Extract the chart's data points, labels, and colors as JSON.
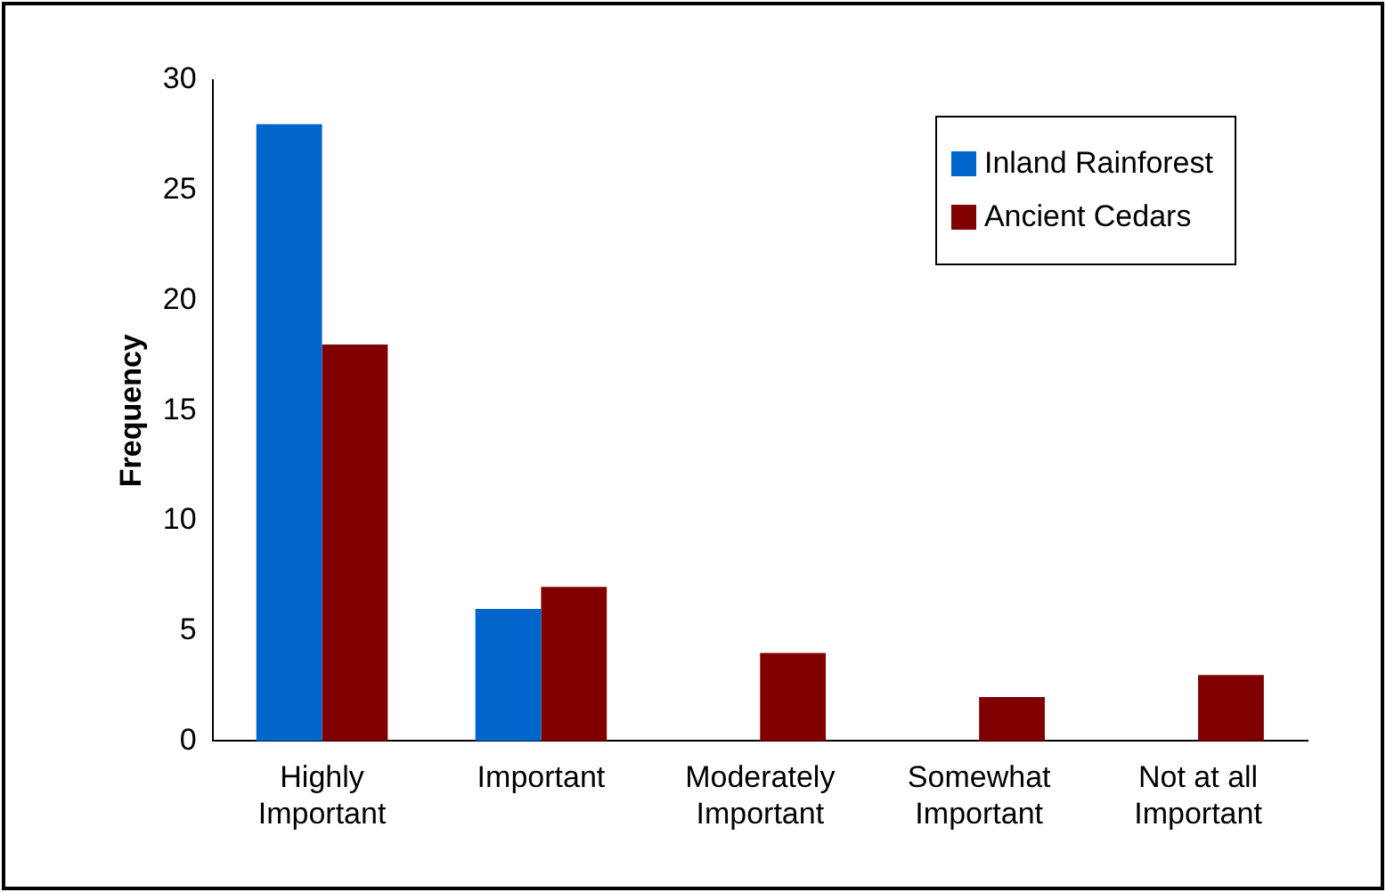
{
  "chart_data": {
    "type": "bar",
    "ylabel": "Frequency",
    "categories": [
      "Highly Important",
      "Important",
      "Moderately Important",
      "Somewhat Important",
      "Not at all Important"
    ],
    "series": [
      {
        "name": "Inland Rainforest",
        "color": "#0066cc",
        "values": [
          28,
          6,
          0,
          0,
          0
        ]
      },
      {
        "name": "Ancient Cedars",
        "color": "#800000",
        "values": [
          18,
          7,
          4,
          2,
          3
        ]
      }
    ],
    "ylim": [
      0,
      30
    ],
    "yticks": [
      0,
      5,
      10,
      15,
      20,
      25,
      30
    ],
    "grid": false,
    "legend": "top right"
  }
}
